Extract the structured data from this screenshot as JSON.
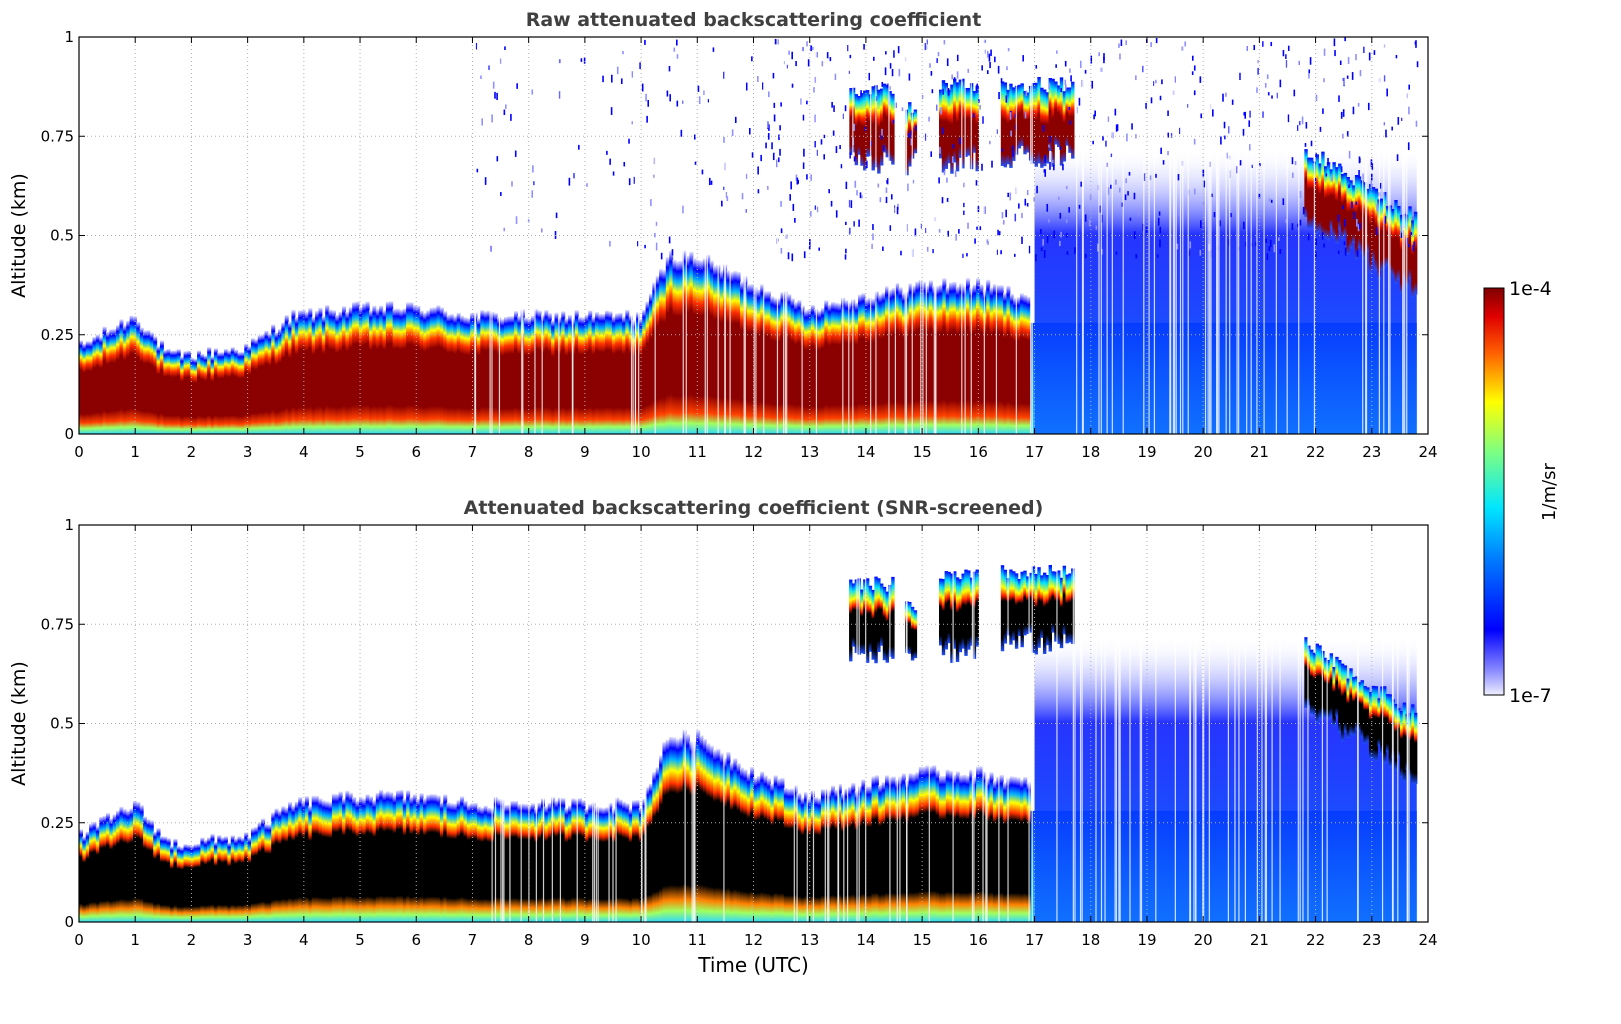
{
  "figure": {
    "colorbar": {
      "top_label": "1e-4",
      "bottom_label": "1e-7",
      "unit_label": "1/m/sr"
    }
  },
  "chart_data": [
    {
      "type": "heatmap",
      "title": "Raw attenuated backscattering coefficient",
      "xlabel": "",
      "ylabel": "Altitude (km)",
      "xlim": [
        0,
        24
      ],
      "ylim": [
        0,
        1
      ],
      "x_ticks": [
        0,
        1,
        2,
        3,
        4,
        5,
        6,
        7,
        8,
        9,
        10,
        11,
        12,
        13,
        14,
        15,
        16,
        17,
        18,
        19,
        20,
        21,
        22,
        23,
        24
      ],
      "y_ticks": [
        0,
        0.25,
        0.5,
        0.75,
        1
      ],
      "y_tick_labels": [
        "0",
        "0.25",
        "0.5",
        "0.75",
        "1"
      ],
      "grid": true,
      "colorscale": "jet (white → blue → cyan → yellow → red → dark red), log scale",
      "color_range": [
        1e-07,
        0.0001
      ],
      "colorbar_label": "1/m/sr",
      "aerosol_layer_top_km": {
        "time": [
          0,
          1,
          1.6,
          2,
          3,
          3.8,
          5,
          6,
          7,
          8,
          9,
          10,
          10.5,
          11,
          12,
          13,
          14,
          15,
          16,
          16.9
        ],
        "altitude": [
          0.22,
          0.3,
          0.2,
          0.2,
          0.22,
          0.3,
          0.32,
          0.32,
          0.3,
          0.3,
          0.3,
          0.3,
          0.45,
          0.45,
          0.38,
          0.32,
          0.35,
          0.38,
          0.38,
          0.35
        ]
      },
      "cloud_segments": [
        {
          "time_start": 13.7,
          "time_end": 14.5,
          "base_km": 0.68,
          "top_km": 0.87
        },
        {
          "time_start": 14.7,
          "time_end": 14.9,
          "base_km": 0.68,
          "top_km": 0.82
        },
        {
          "time_start": 15.3,
          "time_end": 16.0,
          "base_km": 0.68,
          "top_km": 0.88
        },
        {
          "time_start": 16.4,
          "time_end": 17.7,
          "base_km": 0.7,
          "top_km": 0.88
        },
        {
          "time_start": 21.8,
          "time_end": 23.8,
          "base_km": 0.35,
          "top_km": 0.72
        }
      ]
    },
    {
      "type": "heatmap",
      "title": "Attenuated backscattering coefficient (SNR-screened)",
      "xlabel": "Time (UTC)",
      "ylabel": "Altitude (km)",
      "xlim": [
        0,
        24
      ],
      "ylim": [
        0,
        1
      ],
      "x_ticks": [
        0,
        1,
        2,
        3,
        4,
        5,
        6,
        7,
        8,
        9,
        10,
        11,
        12,
        13,
        14,
        15,
        16,
        17,
        18,
        19,
        20,
        21,
        22,
        23,
        24
      ],
      "y_ticks": [
        0,
        0.25,
        0.5,
        0.75,
        1
      ],
      "y_tick_labels": [
        "0",
        "0.25",
        "0.5",
        "0.75",
        "1"
      ],
      "grid": true,
      "colorscale": "jet (white → blue → cyan → yellow → red → dark red), log scale; saturated pixels black",
      "color_range": [
        1e-07,
        0.0001
      ],
      "colorbar_label": "1/m/sr",
      "aerosol_layer_top_km": {
        "time": [
          0,
          1,
          1.6,
          2,
          3,
          3.8,
          5,
          6,
          7,
          8,
          9,
          10,
          10.5,
          11,
          12,
          13,
          14,
          15,
          16,
          16.9
        ],
        "altitude": [
          0.22,
          0.3,
          0.2,
          0.2,
          0.22,
          0.3,
          0.32,
          0.32,
          0.3,
          0.3,
          0.3,
          0.3,
          0.47,
          0.47,
          0.38,
          0.32,
          0.35,
          0.38,
          0.38,
          0.35
        ]
      },
      "cloud_segments": [
        {
          "time_start": 13.7,
          "time_end": 14.5,
          "base_km": 0.68,
          "top_km": 0.85
        },
        {
          "time_start": 14.7,
          "time_end": 14.9,
          "base_km": 0.68,
          "top_km": 0.8
        },
        {
          "time_start": 15.3,
          "time_end": 16.0,
          "base_km": 0.68,
          "top_km": 0.87
        },
        {
          "time_start": 16.4,
          "time_end": 17.7,
          "base_km": 0.7,
          "top_km": 0.88
        },
        {
          "time_start": 21.8,
          "time_end": 23.8,
          "base_km": 0.35,
          "top_km": 0.7
        }
      ]
    }
  ]
}
